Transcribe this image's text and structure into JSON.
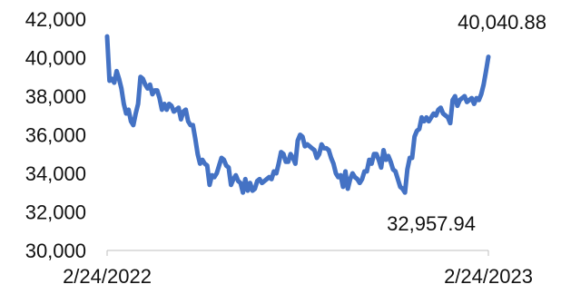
{
  "chart_data": {
    "type": "line",
    "x_start_label": "2/24/2022",
    "x_end_label": "2/24/2023",
    "ylim": [
      30000,
      42000
    ],
    "y_ticks": [
      "30,000",
      "32,000",
      "34,000",
      "36,000",
      "38,000",
      "40,000",
      "42,000"
    ],
    "y_tick_values": [
      30000,
      32000,
      34000,
      36000,
      38000,
      40000,
      42000
    ],
    "grid": false,
    "line_color": "#4472C4",
    "annotations": [
      {
        "text": "40,040.88",
        "point": "last"
      },
      {
        "text": "32,957.94",
        "point": "min"
      }
    ],
    "series": [
      {
        "values": [
          41100,
          38800,
          38900,
          38700,
          39300,
          38900,
          38400,
          37600,
          37100,
          37300,
          36700,
          36500,
          37100,
          37600,
          39000,
          38900,
          38600,
          38400,
          38600,
          38100,
          38300,
          38300,
          37900,
          37300,
          37600,
          37300,
          37600,
          37500,
          37200,
          37300,
          37400,
          36800,
          37200,
          37300,
          36700,
          36500,
          36500,
          35800,
          35000,
          34500,
          34700,
          34500,
          34400,
          33400,
          33900,
          33800,
          34000,
          34400,
          34800,
          34700,
          34400,
          34300,
          33400,
          33700,
          33900,
          33600,
          33500,
          33000,
          33700,
          33100,
          33500,
          33100,
          33200,
          33600,
          33700,
          33500,
          33600,
          33700,
          33800,
          33700,
          34100,
          34000,
          34500,
          35100,
          35000,
          34600,
          34600,
          35000,
          34800,
          34500,
          35700,
          36000,
          35900,
          35400,
          35500,
          35400,
          35300,
          35200,
          34800,
          35000,
          35500,
          35300,
          35300,
          35200,
          34800,
          34500,
          34000,
          33800,
          33900,
          33300,
          34100,
          33200,
          33700,
          34000,
          33800,
          33700,
          33500,
          33700,
          34100,
          34100,
          34700,
          34500,
          35000,
          35000,
          34700,
          34300,
          35200,
          34700,
          34900,
          34600,
          34200,
          34100,
          33700,
          33300,
          33200,
          33000,
          34200,
          34800,
          34800,
          35900,
          36200,
          36300,
          36900,
          36700,
          36900,
          36700,
          36900,
          37100,
          37000,
          37300,
          37400,
          37100,
          37000,
          36900,
          36600,
          37800,
          38000,
          37500,
          37800,
          37900,
          38000,
          37700,
          37800,
          37900,
          37600,
          37900,
          37800,
          38100,
          38600,
          39300,
          40040.88
        ]
      }
    ]
  }
}
